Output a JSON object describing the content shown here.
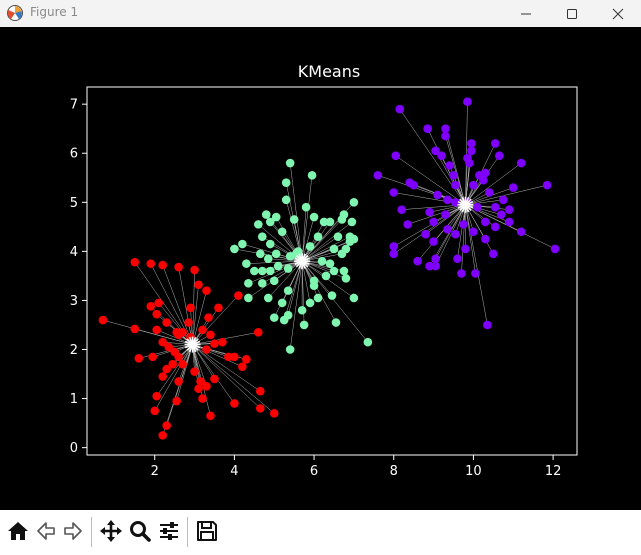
{
  "window": {
    "title": "Figure 1",
    "controls": [
      "minimize",
      "maximize",
      "close"
    ]
  },
  "toolbar": {
    "buttons": [
      {
        "name": "home",
        "icon": "home-icon"
      },
      {
        "name": "back",
        "icon": "back-arrow-icon"
      },
      {
        "name": "forward",
        "icon": "forward-arrow-icon"
      },
      {
        "name": "pan",
        "icon": "move-icon"
      },
      {
        "name": "zoom",
        "icon": "magnifier-icon"
      },
      {
        "name": "configure",
        "icon": "sliders-icon"
      },
      {
        "name": "save",
        "icon": "floppy-icon"
      }
    ]
  },
  "colors": {
    "background": "#000000",
    "cluster_red": "#ff0000",
    "cluster_green": "#7ff5b0",
    "cluster_purple": "#8000ff",
    "centroid": "#ffffff",
    "lines": "#c8c8c8"
  },
  "chart_data": {
    "type": "scatter",
    "title": "KMeans",
    "xlabel": "",
    "ylabel": "",
    "xlim": [
      0.3,
      12.6
    ],
    "ylim": [
      -0.15,
      7.35
    ],
    "xticks": [
      2,
      4,
      6,
      8,
      10,
      12
    ],
    "yticks": [
      0,
      1,
      2,
      3,
      4,
      5,
      6,
      7
    ],
    "grid": false,
    "series": [
      {
        "color": "#ff0000",
        "centroid": [
          2.95,
          2.1
        ],
        "points": [
          [
            0.7,
            2.6
          ],
          [
            1.5,
            3.78
          ],
          [
            1.9,
            3.75
          ],
          [
            2.2,
            3.72
          ],
          [
            2.6,
            3.68
          ],
          [
            3.0,
            3.62
          ],
          [
            3.1,
            3.32
          ],
          [
            3.3,
            3.2
          ],
          [
            3.6,
            2.85
          ],
          [
            4.1,
            3.1
          ],
          [
            1.9,
            2.88
          ],
          [
            2.1,
            2.95
          ],
          [
            2.05,
            2.72
          ],
          [
            2.3,
            2.55
          ],
          [
            1.5,
            2.42
          ],
          [
            2.05,
            2.4
          ],
          [
            2.2,
            2.15
          ],
          [
            2.35,
            2.05
          ],
          [
            2.6,
            2.3
          ],
          [
            2.5,
            1.95
          ],
          [
            2.7,
            2.35
          ],
          [
            2.9,
            2.25
          ],
          [
            3.2,
            2.4
          ],
          [
            3.4,
            2.3
          ],
          [
            3.3,
            2.0
          ],
          [
            3.5,
            2.12
          ],
          [
            3.7,
            2.15
          ],
          [
            2.3,
            1.6
          ],
          [
            2.45,
            1.7
          ],
          [
            2.6,
            1.85
          ],
          [
            2.7,
            1.7
          ],
          [
            1.6,
            1.82
          ],
          [
            1.95,
            1.85
          ],
          [
            2.2,
            1.45
          ],
          [
            2.6,
            1.35
          ],
          [
            3.0,
            1.55
          ],
          [
            3.15,
            1.35
          ],
          [
            3.3,
            1.25
          ],
          [
            3.5,
            1.4
          ],
          [
            3.85,
            1.85
          ],
          [
            4.0,
            1.85
          ],
          [
            4.3,
            1.8
          ],
          [
            4.6,
            2.35
          ],
          [
            4.2,
            1.65
          ],
          [
            3.1,
            1.2
          ],
          [
            2.05,
            1.05
          ],
          [
            2.55,
            0.95
          ],
          [
            3.2,
            1.0
          ],
          [
            4.0,
            0.9
          ],
          [
            4.65,
            1.15
          ],
          [
            4.65,
            0.8
          ],
          [
            5.0,
            0.7
          ],
          [
            2.0,
            0.75
          ],
          [
            2.3,
            0.45
          ],
          [
            3.4,
            0.65
          ],
          [
            2.2,
            0.25
          ],
          [
            2.85,
            2.55
          ],
          [
            3.35,
            2.65
          ],
          [
            2.55,
            2.35
          ],
          [
            2.9,
            2.85
          ]
        ]
      },
      {
        "color": "#7ff5b0",
        "centroid": [
          5.7,
          3.8
        ],
        "points": [
          [
            5.4,
            5.8
          ],
          [
            5.95,
            5.55
          ],
          [
            5.3,
            5.4
          ],
          [
            5.3,
            5.05
          ],
          [
            5.5,
            4.65
          ],
          [
            5.8,
            4.9
          ],
          [
            6.0,
            4.7
          ],
          [
            4.8,
            4.75
          ],
          [
            5.05,
            4.7
          ],
          [
            4.9,
            4.6
          ],
          [
            5.2,
            4.4
          ],
          [
            4.6,
            4.55
          ],
          [
            4.7,
            4.3
          ],
          [
            4.9,
            4.15
          ],
          [
            4.2,
            4.15
          ],
          [
            4.0,
            4.05
          ],
          [
            4.65,
            3.95
          ],
          [
            4.85,
            3.85
          ],
          [
            5.05,
            3.95
          ],
          [
            5.4,
            3.9
          ],
          [
            5.55,
            3.95
          ],
          [
            5.6,
            4.0
          ],
          [
            5.9,
            4.1
          ],
          [
            6.1,
            4.3
          ],
          [
            6.25,
            4.6
          ],
          [
            6.4,
            4.6
          ],
          [
            6.7,
            4.65
          ],
          [
            6.75,
            4.75
          ],
          [
            7.0,
            5.0
          ],
          [
            6.95,
            4.6
          ],
          [
            6.6,
            4.3
          ],
          [
            6.9,
            4.3
          ],
          [
            7.0,
            4.25
          ],
          [
            6.5,
            4.05
          ],
          [
            6.7,
            3.95
          ],
          [
            6.8,
            4.05
          ],
          [
            6.9,
            4.2
          ],
          [
            6.2,
            3.8
          ],
          [
            6.4,
            3.75
          ],
          [
            6.5,
            3.6
          ],
          [
            6.75,
            3.6
          ],
          [
            6.8,
            3.45
          ],
          [
            6.3,
            3.5
          ],
          [
            6.0,
            3.4
          ],
          [
            6.0,
            3.3
          ],
          [
            4.3,
            3.75
          ],
          [
            4.5,
            3.6
          ],
          [
            4.7,
            3.6
          ],
          [
            4.9,
            3.6
          ],
          [
            5.1,
            3.7
          ],
          [
            5.35,
            3.65
          ],
          [
            4.35,
            3.35
          ],
          [
            4.7,
            3.35
          ],
          [
            5.0,
            3.4
          ],
          [
            5.35,
            3.2
          ],
          [
            4.35,
            3.05
          ],
          [
            4.85,
            3.05
          ],
          [
            5.2,
            2.95
          ],
          [
            6.1,
            3.05
          ],
          [
            6.45,
            3.1
          ],
          [
            7.0,
            3.05
          ],
          [
            5.9,
            2.95
          ],
          [
            5.0,
            2.65
          ],
          [
            5.35,
            2.7
          ],
          [
            5.7,
            2.8
          ],
          [
            5.75,
            2.5
          ],
          [
            5.25,
            2.6
          ],
          [
            6.55,
            2.55
          ],
          [
            5.4,
            2.0
          ],
          [
            7.35,
            2.15
          ]
        ]
      },
      {
        "color": "#8000ff",
        "centroid": [
          9.8,
          4.95
        ],
        "points": [
          [
            9.85,
            7.05
          ],
          [
            8.15,
            6.9
          ],
          [
            8.85,
            6.5
          ],
          [
            9.3,
            6.5
          ],
          [
            9.3,
            6.35
          ],
          [
            9.95,
            6.2
          ],
          [
            10.55,
            6.2
          ],
          [
            10.65,
            5.95
          ],
          [
            9.05,
            6.05
          ],
          [
            9.95,
            6.05
          ],
          [
            8.05,
            5.95
          ],
          [
            9.2,
            5.95
          ],
          [
            9.85,
            5.9
          ],
          [
            9.9,
            5.8
          ],
          [
            9.4,
            5.75
          ],
          [
            11.2,
            5.8
          ],
          [
            9.5,
            5.55
          ],
          [
            10.15,
            5.55
          ],
          [
            10.3,
            5.6
          ],
          [
            7.6,
            5.55
          ],
          [
            8.4,
            5.4
          ],
          [
            8.5,
            5.35
          ],
          [
            9.55,
            5.35
          ],
          [
            10.0,
            5.35
          ],
          [
            10.25,
            5.45
          ],
          [
            11.0,
            5.3
          ],
          [
            11.85,
            5.35
          ],
          [
            10.4,
            5.2
          ],
          [
            8.0,
            5.2
          ],
          [
            9.1,
            5.15
          ],
          [
            9.35,
            5.05
          ],
          [
            9.55,
            5.0
          ],
          [
            10.75,
            5.05
          ],
          [
            9.85,
            5.0
          ],
          [
            10.9,
            4.85
          ],
          [
            10.55,
            4.9
          ],
          [
            8.2,
            4.85
          ],
          [
            8.9,
            4.8
          ],
          [
            10.1,
            4.9
          ],
          [
            10.7,
            4.75
          ],
          [
            9.3,
            4.75
          ],
          [
            9.0,
            4.6
          ],
          [
            9.75,
            4.55
          ],
          [
            10.3,
            4.6
          ],
          [
            10.9,
            4.6
          ],
          [
            10.55,
            4.5
          ],
          [
            8.35,
            4.55
          ],
          [
            9.35,
            4.45
          ],
          [
            10.0,
            4.4
          ],
          [
            9.55,
            4.35
          ],
          [
            8.8,
            4.35
          ],
          [
            11.2,
            4.4
          ],
          [
            9.0,
            4.2
          ],
          [
            10.3,
            4.25
          ],
          [
            8.0,
            4.1
          ],
          [
            8.0,
            3.95
          ],
          [
            9.8,
            4.05
          ],
          [
            12.05,
            4.05
          ],
          [
            10.5,
            3.95
          ],
          [
            9.05,
            3.85
          ],
          [
            8.6,
            3.8
          ],
          [
            9.6,
            3.85
          ],
          [
            9.05,
            3.7
          ],
          [
            8.9,
            3.7
          ],
          [
            9.7,
            3.55
          ],
          [
            10.05,
            3.55
          ],
          [
            10.35,
            2.5
          ]
        ]
      }
    ]
  }
}
